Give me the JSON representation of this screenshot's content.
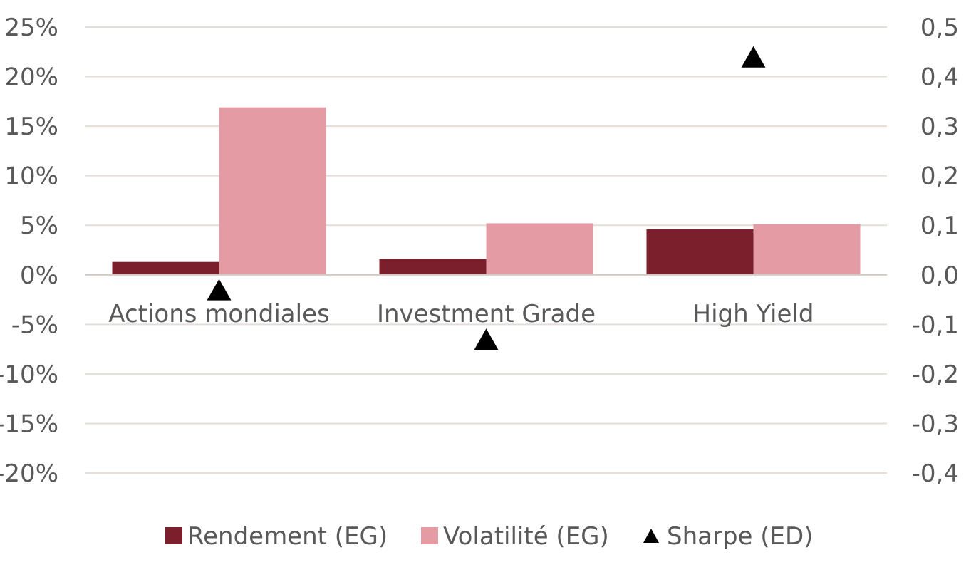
{
  "chart_data": {
    "type": "bar",
    "categories": [
      "Actions mondiales",
      "Investment Grade",
      "High Yield"
    ],
    "series": [
      {
        "name": "Rendement (EG)",
        "kind": "bar",
        "axis": "left",
        "color": "#7a1f2b",
        "values": [
          1.3,
          1.6,
          4.6
        ]
      },
      {
        "name": "Volatilité (EG)",
        "kind": "bar",
        "axis": "left",
        "color": "#e49ba4",
        "values": [
          16.9,
          5.2,
          5.1
        ]
      },
      {
        "name": "Sharpe (ED)",
        "kind": "marker",
        "marker": "triangle",
        "axis": "right",
        "color": "#000000",
        "values": [
          -0.03,
          -0.13,
          0.44
        ]
      }
    ],
    "left_axis": {
      "ylim": [
        -20,
        25
      ],
      "ticks": [
        "25%",
        "20%",
        "15%",
        "10%",
        "5%",
        "0%",
        "-5%",
        "-10%",
        "-15%",
        "-20%"
      ]
    },
    "right_axis": {
      "ylim": [
        -0.4,
        0.5
      ],
      "ticks": [
        "0,5",
        "0,4",
        "0,3",
        "0,2",
        "0,1",
        "0,0",
        "-0,1",
        "-0,2",
        "-0,3",
        "-0,4"
      ]
    },
    "grid": true,
    "legend": {
      "position": "bottom",
      "items": [
        "Rendement (EG)",
        "Volatilité (EG)",
        "Sharpe (ED)"
      ]
    }
  }
}
